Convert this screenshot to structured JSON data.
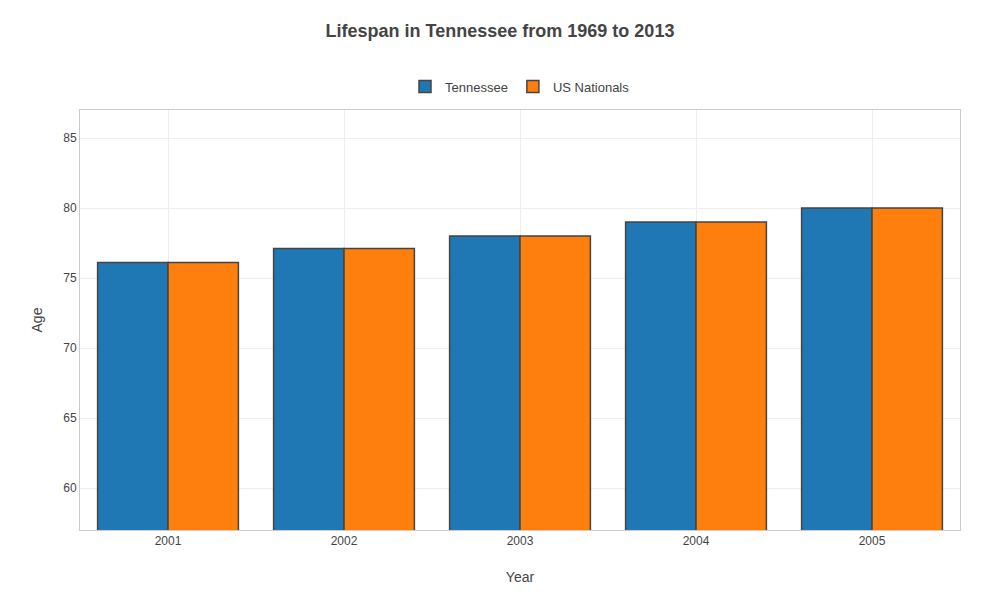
{
  "chart_data": {
    "type": "bar",
    "title": "Lifespan in Tennessee from 1969 to 2013",
    "xlabel": "Year",
    "ylabel": "Age",
    "categories": [
      "2001",
      "2002",
      "2003",
      "2004",
      "2005"
    ],
    "series": [
      {
        "name": "Tennessee",
        "values": [
          76.1,
          77.1,
          78.0,
          79.0,
          80.0
        ]
      },
      {
        "name": "US Nationals",
        "values": [
          76.1,
          77.1,
          78.0,
          79.0,
          80.0
        ]
      }
    ],
    "ylim": [
      57,
      87
    ],
    "yticks": [
      60,
      65,
      70,
      75,
      80,
      85
    ],
    "grid": true,
    "legend": "top"
  }
}
